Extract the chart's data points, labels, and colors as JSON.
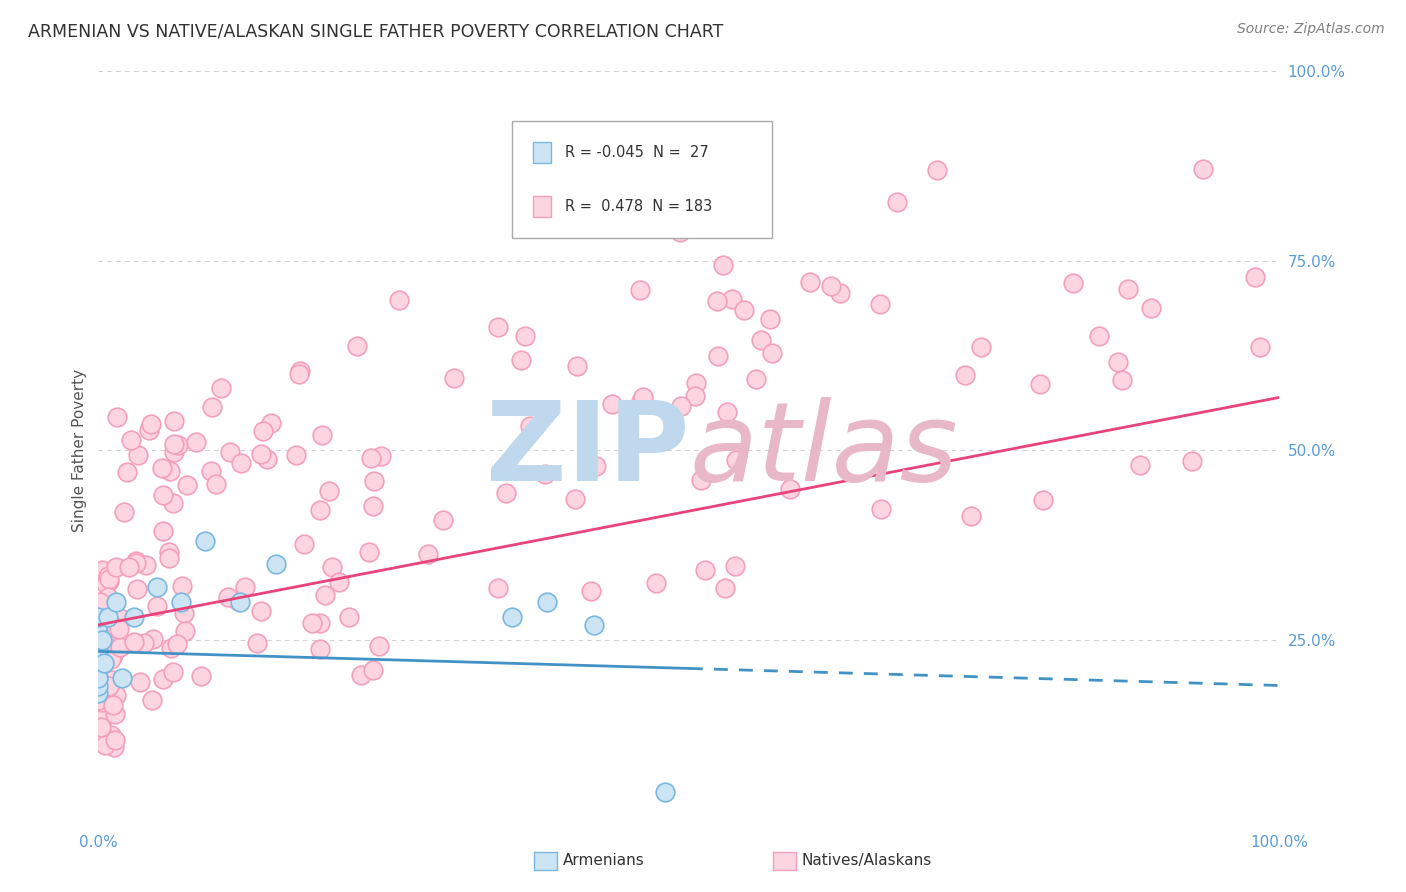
{
  "title": "ARMENIAN VS NATIVE/ALASKAN SINGLE FATHER POVERTY CORRELATION CHART",
  "source": "Source: ZipAtlas.com",
  "ylabel": "Single Father Poverty",
  "legend_armenian_R": "-0.045",
  "legend_armenian_N": "27",
  "legend_native_R": "0.478",
  "legend_native_N": "183",
  "legend_label_armenian": "Armenians",
  "legend_label_native": "Natives/Alaskans",
  "color_armenian_face": "#cde4f5",
  "color_armenian_edge": "#7ab8e0",
  "color_native_face": "#fcd5e0",
  "color_native_edge": "#f4a0bb",
  "color_line_armenian": "#4292c6",
  "color_line_native": "#e8447a",
  "color_line_armenian_dash": "#4292c6",
  "background_color": "#ffffff",
  "grid_color": "#d0d0d0",
  "title_color": "#333333",
  "source_color": "#808080",
  "axis_label_color": "#555555",
  "tick_color": "#5b9bd5",
  "watermark_zip_color": "#c0d8ee",
  "watermark_atlas_color": "#e8b8c8"
}
